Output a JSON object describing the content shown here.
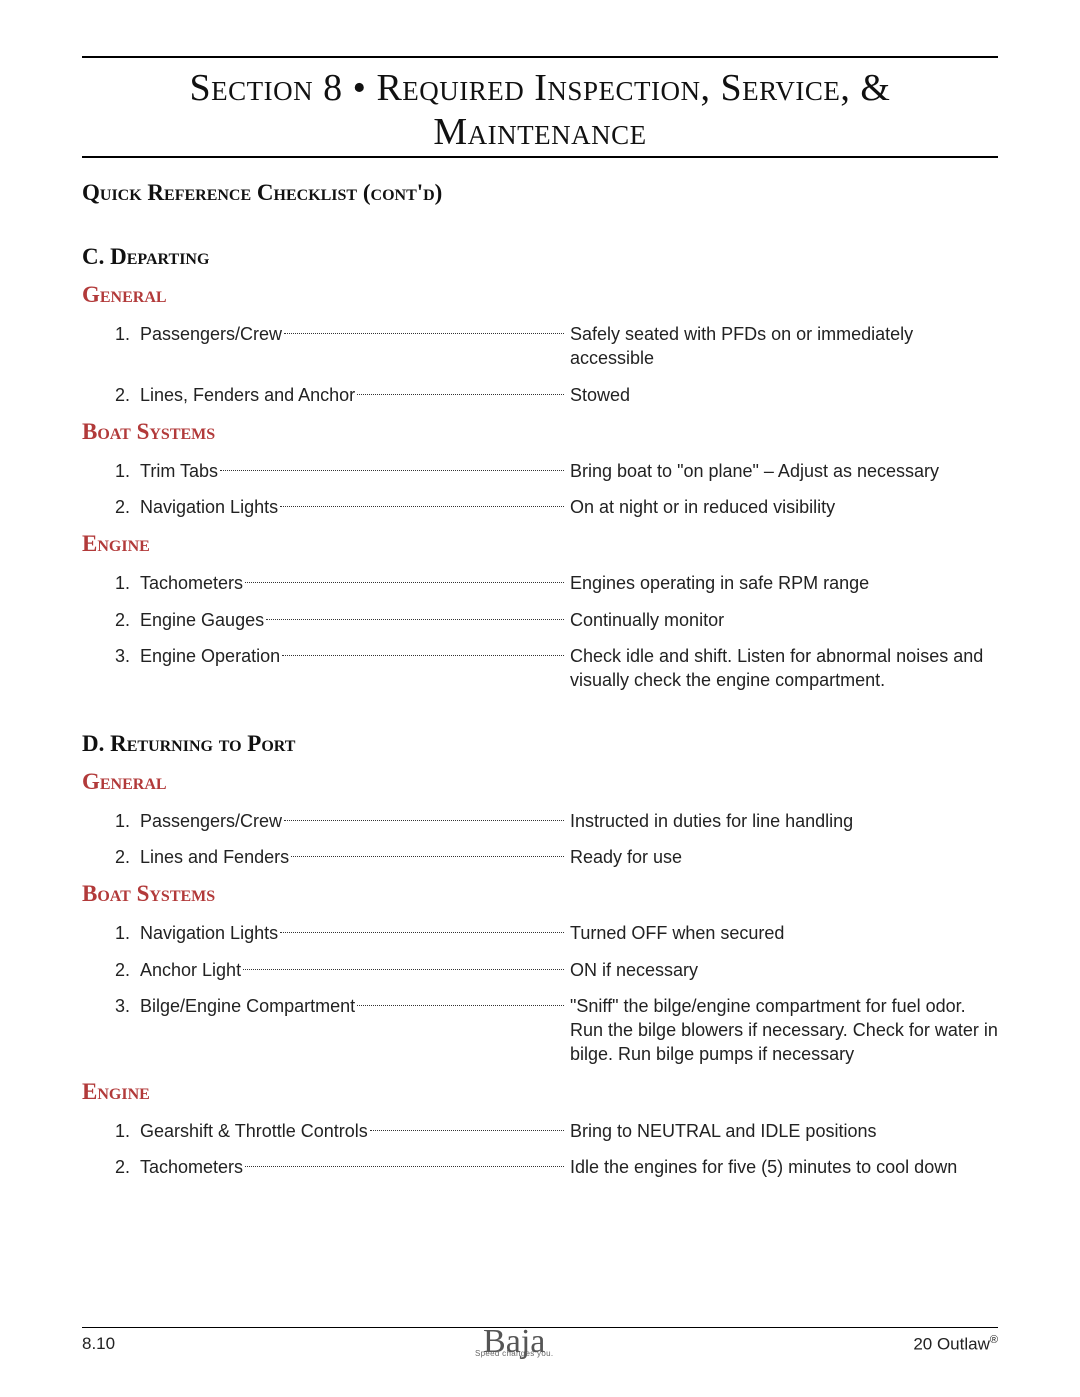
{
  "header": {
    "title_line1": "Section 8 • Required Inspection, Service, &",
    "title_line2": "Maintenance"
  },
  "checklist_title": "Quick Reference Checklist (cont'd)",
  "sections": [
    {
      "letter": "C.",
      "name": "Departing",
      "categories": [
        {
          "name": "General",
          "items": [
            {
              "n": "1.",
              "label": "Passengers/Crew",
              "value": "Safely seated with PFDs on or immediately accessible"
            },
            {
              "n": "2.",
              "label": "Lines, Fenders and Anchor",
              "value": "Stowed",
              "value_width": 430
            }
          ]
        },
        {
          "name": "Boat Systems",
          "items": [
            {
              "n": "1.",
              "label": "Trim Tabs",
              "value": "Bring boat to \"on plane\" – Adjust as necessary"
            },
            {
              "n": "2.",
              "label": "Navigation Lights",
              "value": "On at night or in reduced visibility"
            }
          ]
        },
        {
          "name": "Engine",
          "items": [
            {
              "n": "1.",
              "label": "Tachometers",
              "value": "Engines operating in safe RPM range"
            },
            {
              "n": "2.",
              "label": "Engine Gauges",
              "value": "Continually monitor"
            },
            {
              "n": "3.",
              "label": "Engine Operation",
              "value": "Check idle and shift.  Listen for abnormal noises  and visually check the engine compartment."
            }
          ]
        }
      ]
    },
    {
      "letter": "D.",
      "name": "Returning to Port",
      "categories": [
        {
          "name": "General",
          "items": [
            {
              "n": "1.",
              "label": "Passengers/Crew",
              "value": "Instructed in duties for line handling"
            },
            {
              "n": "2.",
              "label": "Lines and Fenders",
              "value": "Ready for use"
            }
          ]
        },
        {
          "name": "Boat Systems",
          "items": [
            {
              "n": "1.",
              "label": "Navigation Lights",
              "value": "Turned OFF when secured"
            },
            {
              "n": "2.",
              "label": "Anchor Light",
              "value": "ON if necessary"
            },
            {
              "n": "3.",
              "label": "Bilge/Engine Compartment",
              "value": "\"Sniff\" the bilge/engine compartment for fuel odor.  Run the bilge blowers if necessary.  Check for water in bilge.  Run bilge pumps if necessary"
            }
          ]
        },
        {
          "name": "Engine",
          "items": [
            {
              "n": "1.",
              "label": "Gearshift & Throttle Controls",
              "value": "Bring to NEUTRAL and IDLE positions"
            },
            {
              "n": "2.",
              "label": "Tachometers",
              "value": "Idle the engines for five (5) minutes to cool down"
            }
          ]
        }
      ]
    }
  ],
  "footer": {
    "page": "8.10",
    "logo_text": "Baja",
    "logo_tagline": "Speed changes you.",
    "model": "20 Outlaw",
    "model_trademark": "®"
  },
  "colors": {
    "category_color": "#b23a3a",
    "text_color": "#222222",
    "rule_color": "#000000",
    "background": "#ffffff"
  },
  "typography": {
    "title_fontsize": 38,
    "subtitle_fontsize": 23,
    "body_fontsize": 18,
    "footer_fontsize": 17
  }
}
